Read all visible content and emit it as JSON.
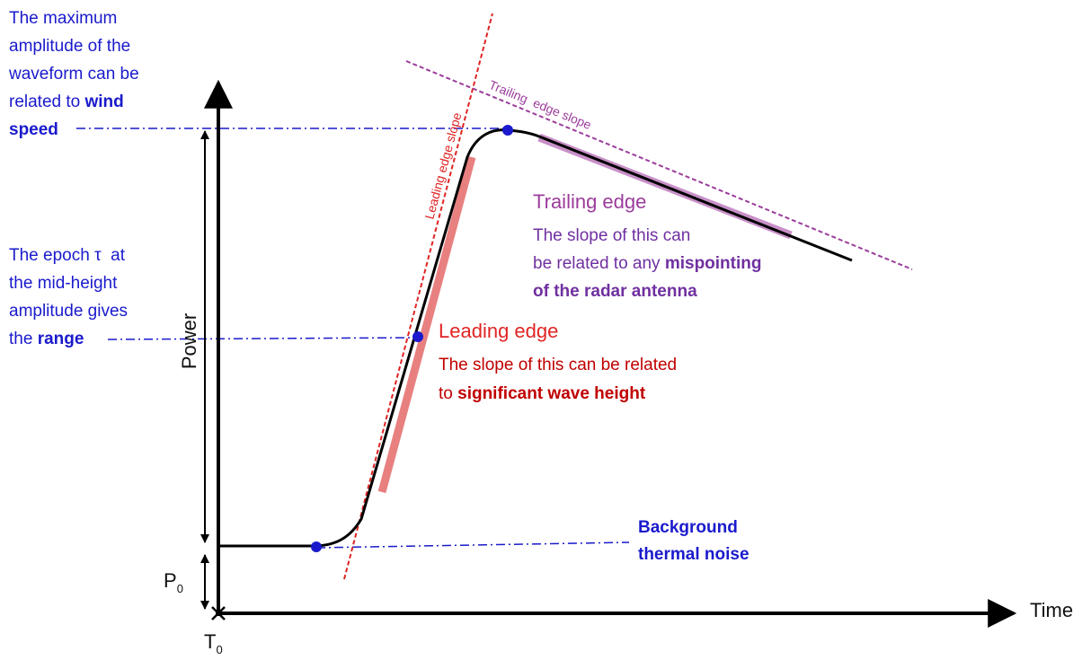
{
  "axes": {
    "y_label": "Power",
    "x_label": "Time",
    "origin_label": "T",
    "origin_subscript": "0",
    "baseline_label": "P",
    "baseline_subscript": "0"
  },
  "slope_labels": {
    "leading": "Leading edge slope",
    "trailing": "Trailing  edge slope"
  },
  "annotations": {
    "wind_speed": {
      "lines": [
        [
          {
            "text": "The maximum"
          }
        ],
        [
          {
            "text": "amplitude of the"
          }
        ],
        [
          {
            "text": "waveform can be"
          }
        ],
        [
          {
            "text": "related to "
          },
          {
            "text": "wind",
            "bold": true
          }
        ],
        [
          {
            "text": "speed",
            "bold": true
          }
        ]
      ]
    },
    "range": {
      "lines": [
        [
          {
            "text": "The epoch τ  at"
          }
        ],
        [
          {
            "text": "the mid-height"
          }
        ],
        [
          {
            "text": "amplitude gives"
          }
        ],
        [
          {
            "text": "the "
          },
          {
            "text": "range",
            "bold": true
          }
        ]
      ]
    },
    "leading_edge": {
      "title": "Leading edge",
      "lines": [
        [
          {
            "text": "The slope of this can be related"
          }
        ],
        [
          {
            "text": "to "
          },
          {
            "text": "significant wave height",
            "bold": true
          }
        ]
      ]
    },
    "trailing_edge": {
      "title": "Trailing edge",
      "lines": [
        [
          {
            "text": "The slope of this can"
          }
        ],
        [
          {
            "text": "be related to any "
          },
          {
            "text": "mispointing",
            "bold": true
          }
        ],
        [
          {
            "text": "of the radar antenna",
            "bold": true
          }
        ]
      ]
    },
    "thermal_noise": {
      "lines": [
        [
          {
            "text": "Background",
            "bold": true
          }
        ],
        [
          {
            "text": "thermal noise",
            "bold": true
          }
        ]
      ]
    }
  }
}
